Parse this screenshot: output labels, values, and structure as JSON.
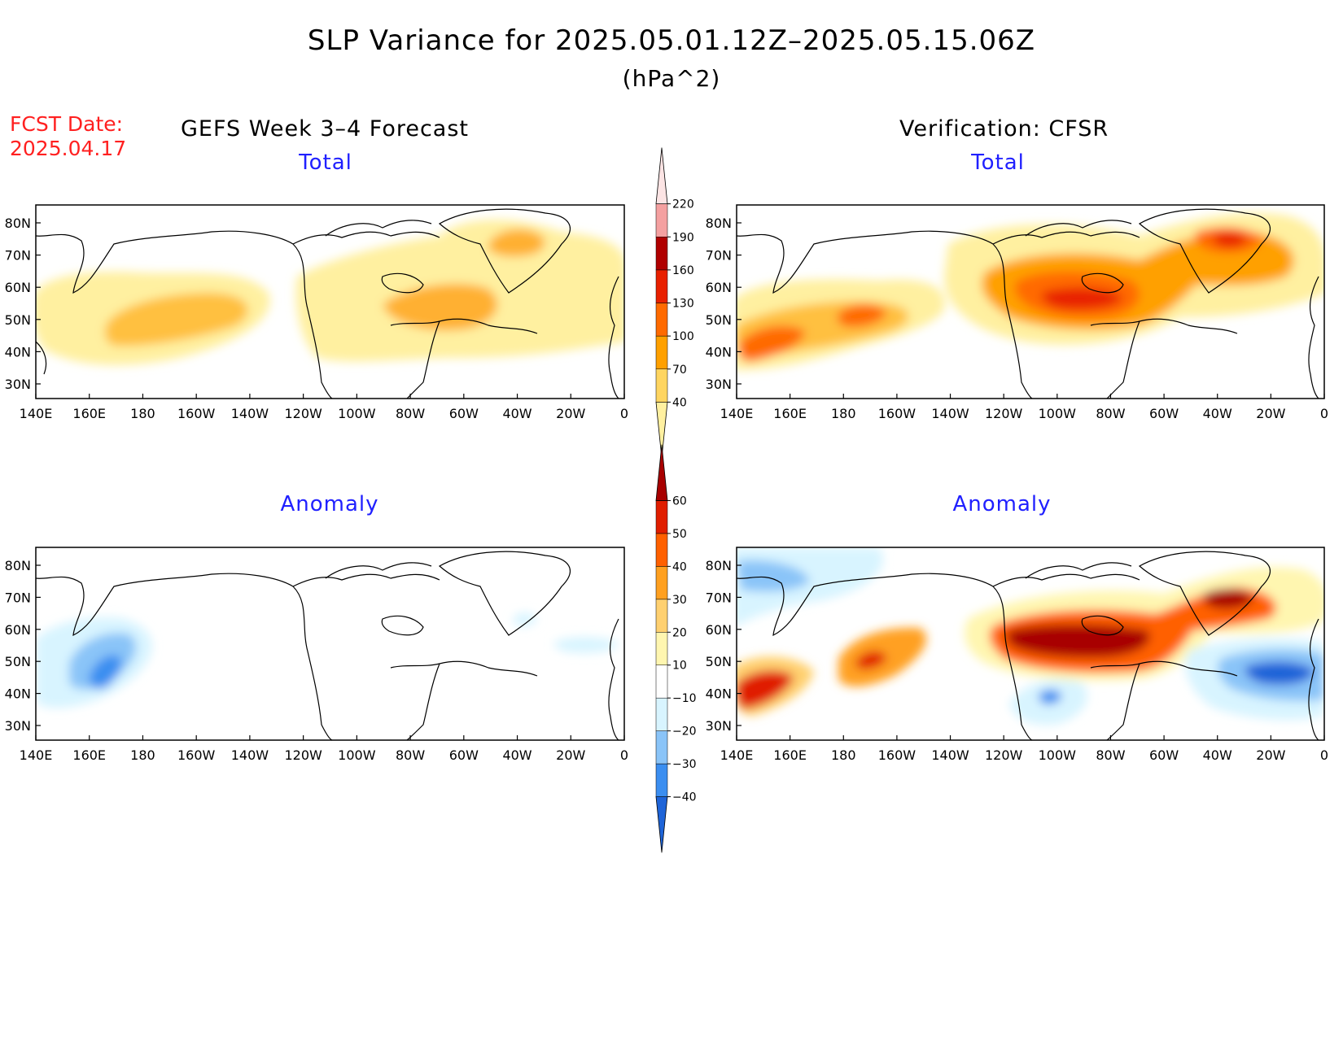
{
  "title": "SLP Variance for 2025.05.01.12Z–2025.05.15.06Z",
  "units": "(hPa^2)",
  "forecast_date_label": "FCST Date:",
  "forecast_date_value": "2025.04.17",
  "left_column_title": "GEFS Week 3–4 Forecast",
  "right_column_title": "Verification: CFSR",
  "panels": [
    {
      "id": "gefs-total",
      "subtitle": "Total"
    },
    {
      "id": "cfsr-total",
      "subtitle": "Total"
    },
    {
      "id": "gefs-anomaly",
      "subtitle": "Anomaly"
    },
    {
      "id": "cfsr-anomaly",
      "subtitle": "Anomaly"
    }
  ],
  "axes": {
    "lon_labels": [
      "140E",
      "160E",
      "180",
      "160W",
      "140W",
      "120W",
      "100W",
      "80W",
      "60W",
      "40W",
      "20W",
      "0"
    ],
    "lat_labels": [
      "80N",
      "70N",
      "60N",
      "50N",
      "40N",
      "30N"
    ]
  },
  "colorbars": {
    "total": {
      "labels": [
        "40",
        "70",
        "100",
        "130",
        "160",
        "190",
        "220"
      ],
      "colors": [
        "#fff0a0",
        "#ffd560",
        "#ffa000",
        "#ff6a00",
        "#e82000",
        "#b00000",
        "#f4a0a0",
        "#fce4e4"
      ]
    },
    "anomaly": {
      "labels": [
        "−40",
        "−30",
        "−20",
        "−10",
        "10",
        "20",
        "30",
        "40",
        "50",
        "60"
      ],
      "colors": [
        "#1e64d8",
        "#3b8ef0",
        "#8ac4f8",
        "#d8f4ff",
        "#ffffff",
        "#fff6b0",
        "#ffd070",
        "#ffa020",
        "#ff6000",
        "#e01e00",
        "#a80000"
      ]
    }
  }
}
